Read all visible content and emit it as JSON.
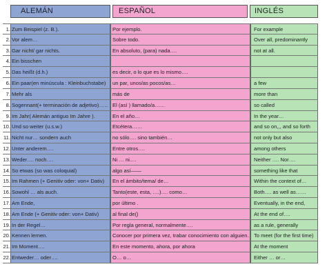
{
  "headers": {
    "de": "ALEMÁN",
    "es": "ESPAÑOL",
    "en": "INGLÉS"
  },
  "rows": [
    {
      "n": "1.",
      "de": "Zum Beispiel (z. B.).",
      "es": "Por ejemplo.",
      "en": "For example"
    },
    {
      "n": "2.",
      "de": "Vor alem…",
      "es": " Sobre todo.",
      "en": "Over all, predominantly"
    },
    {
      "n": "3.",
      "de": "Gar nicht/ gar nichts.",
      "es": "En absoluto, (para) nada….",
      "en": "not at all."
    },
    {
      "n": "4.",
      "de": "Ein bisschen",
      "es": "",
      "en": ""
    },
    {
      "n": "5.",
      "de": "Das heißt (d.h.)",
      "es": "es decir, o lo que es lo mismo….",
      "en": ""
    },
    {
      "n": "6.",
      "de": "Ein paar(en minúscula : Kleinbuchstabe)",
      "es": "un par, unos/as pocos/as…",
      "en": "a few"
    },
    {
      "n": "7.",
      "de": "Mehr als",
      "es": "más de",
      "en": "more than"
    },
    {
      "n": "8.",
      "de": "Sogennant(+ terminación de adjetivo)……",
      "es": "El (así ) llamado/a……",
      "en": "so called"
    },
    {
      "n": "9.",
      "de": "Im Jahr( Alemán antiguo Im Jahre ).",
      "es": "En el año…",
      "en": "In the year…"
    },
    {
      "n": "10.",
      "de": " Und so weiter (u.s.w.)",
      "es": "Etcétera……",
      "en": "and so on,,, and so forth"
    },
    {
      "n": "11.",
      "de": " Nicht nur… sondern auch",
      "es": "no sólo…. sino también…",
      "en": "not only but also"
    },
    {
      "n": "12.",
      "de": " Unter anderem….",
      "es": "Entre otros….",
      "en": "among others"
    },
    {
      "n": "13.",
      "de": " Weder…. noch….",
      "es": "Ni … ni….",
      "en": " Neither …. Nor…."
    },
    {
      "n": "14.",
      "de": " So etwas (so was coloquial)",
      "es": "algo así——",
      "en": " something like that"
    },
    {
      "n": "15.",
      "de": "Im Rahmen (+ Genitiv  oder: von+ Dativ)",
      "es": "En el ámbito/tema/ de…",
      "en": "Within the context of…"
    },
    {
      "n": "16.",
      "de": "Sowohl … als auch.",
      "es": "Tanto(este, esta, ….)…. como…",
      "en": "Both…. as well as……"
    },
    {
      "n": "17.",
      "de": "Am Ende,",
      "es": "por último   .",
      "en": "Eventually,  in the end,"
    },
    {
      "n": "18.",
      "de": "Am Ende (+ Genitiv  oder: von+ Dativ)",
      "es": " al final de()",
      "en": "At the end of…."
    },
    {
      "n": "19.",
      "de": " In der Regel…",
      "es": "Por regla general, normalmente….",
      "en": "as a rule, generally"
    },
    {
      "n": "20.",
      "de": " Kennen lernen.",
      "es": "Conocer por primera vez, trabar conocimiento con alguien….",
      "en": "To meet (for the first time)"
    },
    {
      "n": "21.",
      "de": " Im Moment….",
      "es": " En este momento, ahora, por ahora",
      "en": "At the moment"
    },
    {
      "n": "22.",
      "de": " Entweder… oder….",
      "es": "O… o…",
      "en": "Either … or…"
    }
  ]
}
